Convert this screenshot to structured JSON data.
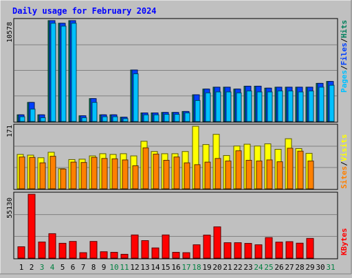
{
  "chart_data": [
    {
      "type": "bar",
      "title": "Daily usage for February 2024",
      "categories": [
        "1",
        "2",
        "3",
        "4",
        "5",
        "6",
        "7",
        "8",
        "9",
        "10",
        "11",
        "12",
        "13",
        "14",
        "15",
        "16",
        "17",
        "18",
        "19",
        "20",
        "21",
        "22",
        "23",
        "24",
        "25",
        "26",
        "27",
        "28",
        "29",
        "30",
        "31"
      ],
      "weekend_days": [
        "3",
        "4",
        "10",
        "11",
        "17",
        "18",
        "24",
        "25",
        "31"
      ],
      "ylim": [
        0,
        10578
      ],
      "ytick_label": "10578",
      "side_labels": [
        "Pages",
        "Files",
        "Hits"
      ],
      "series": [
        {
          "name": "Hits",
          "values": [
            700,
            2000,
            700,
            10578,
            10300,
            10578,
            600,
            2400,
            700,
            700,
            450,
            5400,
            900,
            900,
            950,
            950,
            1050,
            2800,
            3400,
            3600,
            3600,
            3400,
            3700,
            3700,
            3500,
            3600,
            3600,
            3600,
            3600,
            4000,
            4200
          ]
        },
        {
          "name": "Files",
          "values": [
            500,
            1300,
            400,
            10300,
            10000,
            10300,
            400,
            2000,
            500,
            500,
            300,
            5000,
            700,
            700,
            750,
            750,
            900,
            2200,
            3000,
            3100,
            3100,
            3000,
            3200,
            3100,
            3100,
            3200,
            3200,
            3100,
            3200,
            3600,
            3800
          ]
        },
        {
          "name": "Pages",
          "values": [
            700,
            2000,
            700,
            10578,
            10300,
            10578,
            600,
            2400,
            700,
            700,
            450,
            5400,
            900,
            900,
            950,
            950,
            1050,
            2800,
            3400,
            3600,
            3600,
            3400,
            3700,
            3700,
            3500,
            3600,
            3600,
            3600,
            3600,
            4000,
            4200
          ]
        }
      ]
    },
    {
      "type": "bar",
      "ylim": [
        0,
        171
      ],
      "ytick_label": "171",
      "side_labels": [
        "Sites",
        "Visits"
      ],
      "series": [
        {
          "name": "Visits",
          "values": [
            94,
            92,
            85,
            100,
            55,
            80,
            81,
            90,
            96,
            94,
            96,
            90,
            130,
            102,
            96,
            96,
            102,
            171,
            121,
            149,
            91,
            117,
            122,
            117,
            123,
            108,
            137,
            110,
            97,
            0,
            0
          ]
        },
        {
          "name": "Sites",
          "values": [
            87,
            86,
            71,
            89,
            54,
            73,
            72,
            86,
            83,
            82,
            79,
            63,
            112,
            95,
            78,
            87,
            71,
            66,
            73,
            83,
            76,
            104,
            78,
            76,
            79,
            74,
            111,
            103,
            76,
            0,
            0
          ]
        }
      ]
    },
    {
      "type": "bar",
      "ylim": [
        0,
        55130
      ],
      "ytick_label": "55130",
      "side_labels": [
        "KBytes"
      ],
      "series": [
        {
          "name": "KBytes",
          "values": [
            9800,
            55130,
            13900,
            21100,
            12800,
            14400,
            4700,
            14400,
            5500,
            5000,
            3300,
            20000,
            15100,
            8800,
            20000,
            5000,
            4700,
            11500,
            19900,
            27000,
            13300,
            13300,
            12700,
            11500,
            17700,
            13800,
            14200,
            12900,
            17000,
            0,
            0
          ]
        }
      ]
    }
  ],
  "colors": {
    "background": "#c0c0c0",
    "plot_bg": "#c0c0c0",
    "gridline": "#808080",
    "title": "#0000ff",
    "day_weekday": "#000000",
    "day_weekend": "#008040",
    "hits": "#00805c",
    "files": "#0040ff",
    "pages": "#00c0ff",
    "visits": "#ffff00",
    "sites": "#ff8000",
    "kbytes": "#ff0000"
  }
}
